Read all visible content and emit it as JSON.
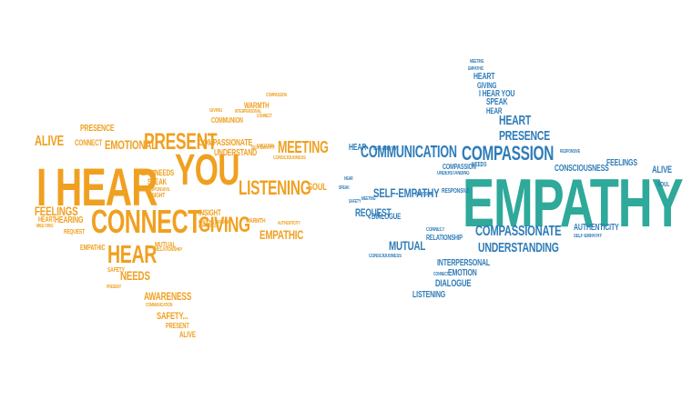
{
  "colors": {
    "background": "#ffffff",
    "orange": "#f0a020",
    "blue": "#2e7cb8",
    "teal": "#2ea99a"
  },
  "left_cloud": {
    "words": [
      "COMPASSION",
      "WARMTH",
      "INTERPERSONAL",
      "COMMUNION",
      "GIVING",
      "CONNECT",
      "PRESENCE",
      "ALIVE",
      "CONNECT",
      "EMOTIONAL",
      "PRESENT",
      "COMPASSIONATE",
      "UNDERSTAND",
      "SELF-EMPATHY",
      "MEETING",
      "EMOTION",
      "CONSCIOUSNESS",
      "NEEDS",
      "HEART",
      "I HEAR",
      "YOU",
      "SPEAK",
      "RESPONSIVE",
      "SOUL",
      "LISTENING",
      "INSIGHT",
      "FEELINGS",
      "HEART",
      "MEETING",
      "HEARING",
      "CONNECT",
      "INSIGHT",
      "UNDERSTANDING",
      "AWARENESS",
      "GIVING",
      "REQUEST",
      "WARMTH",
      "AUTHENTICITY",
      "EMPATHIC",
      "MUTUAL",
      "EMPATHIC",
      "RELATIONSHIP",
      "HEAR",
      "SAFETY",
      "NEEDS",
      "PRESENT",
      "COMMUNICATION",
      "AWARENESS",
      "SAFETY...",
      "PRESENT",
      "ALIVE"
    ]
  },
  "right_cloud": {
    "words": [
      "MEETING",
      "EMPATHIC",
      "HEART",
      "GIVING",
      "I HEAR YOU",
      "SPEAK",
      "HEAR",
      "HEART",
      "PRESENCE",
      "HEAR",
      "COMMUNICATION",
      "COMPASSION",
      "RESPONSIVE",
      "CONSCIOUSNESS",
      "FEELINGS",
      "SELF-EMPATHY",
      "COMPASSION",
      "UNDERSTANDING",
      "NEEDS",
      "EMPATHY",
      "SELF-EMPATHY",
      "RESPONSIVE",
      "MEETING",
      "REQUEST",
      "DIALOGUE",
      "COMPASSIONATE",
      "AUTHENTICITY",
      "SELF-EMPATHY",
      "MUTUAL",
      "RELATIONSHIP",
      "CONNECT",
      "UNDERSTANDING",
      "CONSCIOUSNESS",
      "INTERPERSONAL",
      "EMOTION",
      "DIALOGUE",
      "LISTENING",
      "CONNECT",
      "SAFETY",
      "EMOTIONAL",
      "ALIVE",
      "SOUL",
      "HEAR",
      "SPEAK"
    ]
  }
}
